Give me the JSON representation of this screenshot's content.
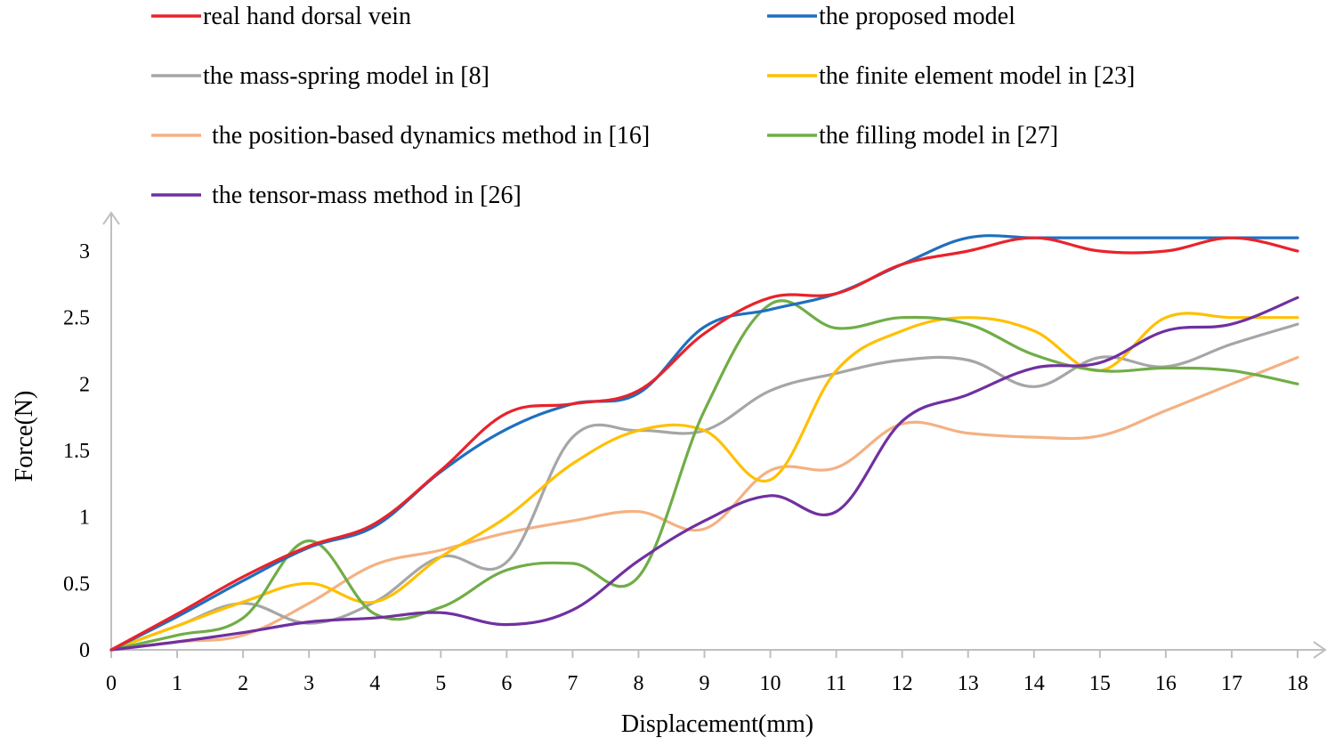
{
  "chart_data": {
    "type": "line",
    "xlabel": "Displacement(mm)",
    "ylabel": "Force(N)",
    "xlim": [
      0,
      18
    ],
    "ylim": [
      0,
      3
    ],
    "x_ticks": [
      "0",
      "1",
      "2",
      "3",
      "4",
      "5",
      "6",
      "7",
      "8",
      "9",
      "10",
      "11",
      "12",
      "13",
      "14",
      "15",
      "16",
      "17",
      "18"
    ],
    "y_ticks": [
      "0",
      "0.5",
      "1",
      "1.5",
      "2",
      "2.5",
      "3"
    ],
    "grid": false,
    "legend_position": "top",
    "x": [
      0,
      1,
      2,
      3,
      4,
      5,
      6,
      7,
      8,
      9,
      10,
      11,
      12,
      13,
      14,
      15,
      16,
      17,
      18
    ],
    "series": [
      {
        "name": "real hand dorsal vein",
        "color": "#e8232b",
        "values": [
          0,
          0.27,
          0.55,
          0.78,
          0.95,
          1.35,
          1.78,
          1.85,
          1.95,
          2.38,
          2.65,
          2.68,
          2.9,
          3.0,
          3.1,
          3.0,
          3.0,
          3.1,
          3.0
        ]
      },
      {
        "name": "the proposed model",
        "color": "#1f6fc0",
        "values": [
          0,
          0.25,
          0.52,
          0.77,
          0.93,
          1.34,
          1.66,
          1.85,
          1.93,
          2.43,
          2.56,
          2.68,
          2.9,
          3.1,
          3.1,
          3.1,
          3.1,
          3.1,
          3.1
        ]
      },
      {
        "name": "the mass-spring model in [8]",
        "color": "#a6a6a6",
        "values": [
          0,
          0.18,
          0.35,
          0.2,
          0.36,
          0.7,
          0.66,
          1.6,
          1.65,
          1.65,
          1.95,
          2.08,
          2.18,
          2.18,
          1.98,
          2.2,
          2.13,
          2.3,
          2.45
        ]
      },
      {
        "name": "the finite element model in [23]",
        "color": "#ffc000",
        "values": [
          0,
          0.18,
          0.36,
          0.5,
          0.36,
          0.7,
          1.0,
          1.4,
          1.65,
          1.65,
          1.28,
          2.1,
          2.4,
          2.5,
          2.4,
          2.1,
          2.5,
          2.5,
          2.5
        ]
      },
      {
        "name": "the position-based dynamics method in [16]",
        "color": "#f4b183",
        "values": [
          0,
          0.06,
          0.11,
          0.35,
          0.64,
          0.75,
          0.88,
          0.97,
          1.04,
          0.91,
          1.35,
          1.37,
          1.7,
          1.63,
          1.6,
          1.61,
          1.8,
          2.0,
          2.2
        ]
      },
      {
        "name": "the filling model in [27]",
        "color": "#70ad47",
        "values": [
          0,
          0.11,
          0.24,
          0.82,
          0.27,
          0.32,
          0.6,
          0.65,
          0.55,
          1.8,
          2.6,
          2.42,
          2.5,
          2.45,
          2.22,
          2.1,
          2.12,
          2.1,
          2.0
        ]
      },
      {
        "name": "the tensor-mass method in [26]",
        "color": "#7030a0",
        "values": [
          0,
          0.06,
          0.13,
          0.21,
          0.24,
          0.28,
          0.19,
          0.3,
          0.67,
          0.97,
          1.16,
          1.04,
          1.72,
          1.92,
          2.12,
          2.16,
          2.4,
          2.45,
          2.65
        ]
      }
    ]
  }
}
